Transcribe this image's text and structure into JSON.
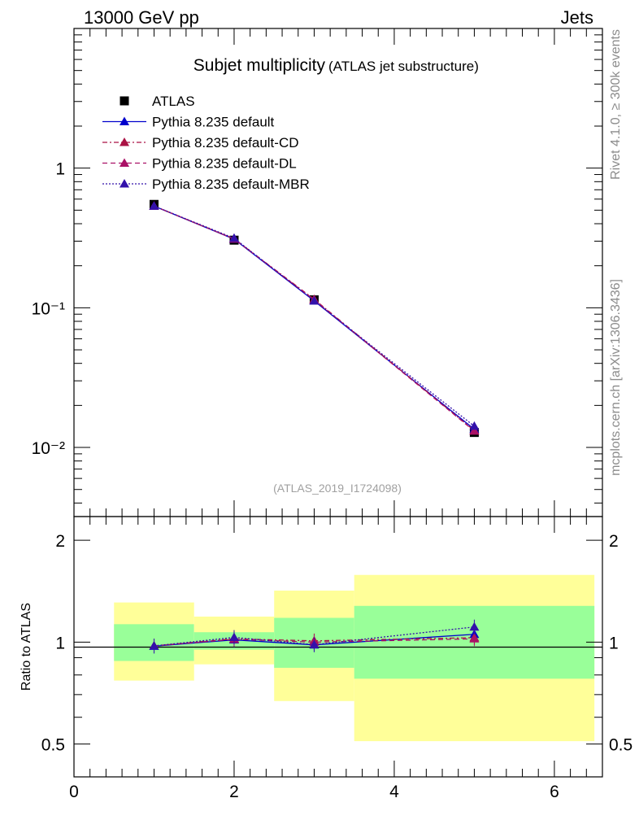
{
  "header": {
    "left": "13000 GeV pp",
    "right": "Jets"
  },
  "side_text": {
    "top": "Rivet 4.1.0, ≥ 300k events",
    "bottom": "mcplots.cern.ch [arXiv:1306.3436]"
  },
  "chart_data": [
    {
      "type": "line",
      "title": "Subjet multiplicity",
      "subtitle": "(ATLAS jet substructure)",
      "watermark": "(ATLAS_2019_I1724098)",
      "yscale": "log",
      "xlim": [
        0,
        6.6
      ],
      "ylim": [
        0.0032,
        10
      ],
      "ytick_labels": [
        "1",
        "10⁻¹",
        "10⁻²"
      ],
      "x": [
        1,
        2,
        3,
        5
      ],
      "series": [
        {
          "name": "ATLAS",
          "color": "#000000",
          "marker": "square",
          "values": [
            0.55,
            0.305,
            0.114,
            0.0128
          ]
        },
        {
          "name": "Pythia 8.235 default",
          "color": "#0000cc",
          "marker": "triangle",
          "line": "solid",
          "values": [
            0.535,
            0.31,
            0.112,
            0.0135
          ]
        },
        {
          "name": "Pythia 8.235 default-CD",
          "color": "#aa1144",
          "marker": "triangle",
          "line": "dashdot",
          "values": [
            0.535,
            0.312,
            0.115,
            0.0132
          ]
        },
        {
          "name": "Pythia 8.235 default-DL",
          "color": "#aa1166",
          "marker": "triangle",
          "line": "dashed",
          "values": [
            0.535,
            0.311,
            0.114,
            0.0131
          ]
        },
        {
          "name": "Pythia 8.235 default-MBR",
          "color": "#3311aa",
          "marker": "triangle",
          "line": "dotted",
          "values": [
            0.535,
            0.315,
            0.112,
            0.0142
          ]
        }
      ],
      "legend": "top-left"
    },
    {
      "type": "line",
      "ylabel": "Ratio to ATLAS",
      "yscale": "log",
      "xlim": [
        0,
        6.6
      ],
      "ylim": [
        0.4,
        2.35
      ],
      "xtick_labels": [
        "0",
        "2",
        "4",
        "6"
      ],
      "ytick_labels": [
        "0.5",
        "1",
        "2"
      ],
      "uncertainty_bands": [
        {
          "x_range": [
            0.5,
            1.5
          ],
          "inner": [
            0.88,
            1.13
          ],
          "outer": [
            0.77,
            1.31
          ]
        },
        {
          "x_range": [
            1.5,
            2.5
          ],
          "inner": [
            0.95,
            1.07
          ],
          "outer": [
            0.86,
            1.19
          ]
        },
        {
          "x_range": [
            2.5,
            3.5
          ],
          "inner": [
            0.84,
            1.18
          ],
          "outer": [
            0.67,
            1.42
          ]
        },
        {
          "x_range": [
            3.5,
            6.5
          ],
          "inner": [
            0.78,
            1.28
          ],
          "outer": [
            0.51,
            1.58
          ]
        }
      ],
      "band_colors": {
        "inner": "#99ff99",
        "outer": "#ffff99"
      },
      "x": [
        1,
        2,
        3,
        5
      ],
      "series": [
        {
          "name": "Pythia 8.235 default",
          "color": "#0000cc",
          "line": "solid",
          "values": [
            0.973,
            1.016,
            0.982,
            1.055
          ]
        },
        {
          "name": "Pythia 8.235 default-CD",
          "color": "#aa1144",
          "line": "dashdot",
          "values": [
            0.975,
            1.023,
            1.009,
            1.031
          ]
        },
        {
          "name": "Pythia 8.235 default-DL",
          "color": "#aa1166",
          "line": "dashed",
          "values": [
            0.975,
            1.02,
            1.0,
            1.023
          ]
        },
        {
          "name": "Pythia 8.235 default-MBR",
          "color": "#3311aa",
          "line": "dotted",
          "values": [
            0.975,
            1.033,
            0.983,
            1.109
          ]
        }
      ]
    }
  ]
}
